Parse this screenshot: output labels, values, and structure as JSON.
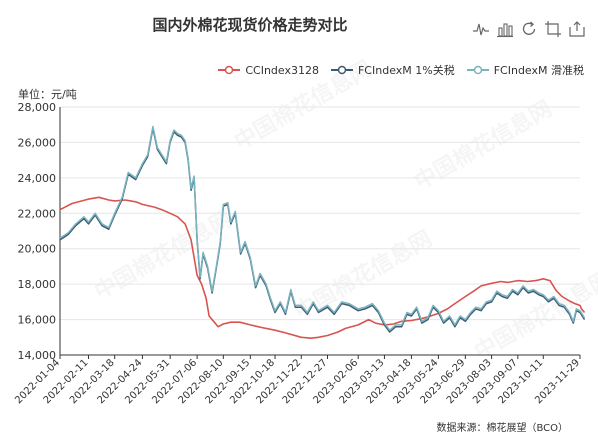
{
  "title": "国内外棉花现货价格走势对比",
  "unit_label": "单位：元/吨",
  "source": "数据来源：棉花展望（BCO）",
  "toolbox": [
    {
      "name": "line-chart-icon"
    },
    {
      "name": "bar-chart-icon"
    },
    {
      "name": "restore-icon"
    },
    {
      "name": "data-zoom-icon"
    },
    {
      "name": "save-image-icon"
    }
  ],
  "chart_data": {
    "type": "line",
    "title": "国内外棉花现货价格走势对比",
    "ylabel": "单位：元/吨",
    "ylim": [
      14000,
      28000
    ],
    "y_ticks": [
      "14,000",
      "16,000",
      "18,000",
      "20,000",
      "22,000",
      "24,000",
      "26,000",
      "28,000"
    ],
    "x_ticks": [
      "2022-01-04",
      "2022-02-11",
      "2022-03-18",
      "2022-04-24",
      "2022-05-31",
      "2022-07-06",
      "2022-08-10",
      "2022-09-15",
      "2022-10-18",
      "2022-11-22",
      "2022-12-27",
      "2023-02-06",
      "2023-03-13",
      "2023-04-18",
      "2023-05-24",
      "2023-06-29",
      "2023-08-03",
      "2023-09-07",
      "2023-10-11",
      "2023-11-29"
    ],
    "grid": true,
    "legend_position": "top-right",
    "colors": {
      "cc": "#d9534f",
      "fc1": "#3d5a73",
      "fc2": "#79b4bf"
    },
    "series": [
      {
        "name": "CCIndex3128",
        "color": "#d9534f",
        "points": [
          [
            "2022-01-04",
            22200
          ],
          [
            "2022-01-20",
            22550
          ],
          [
            "2022-02-11",
            22800
          ],
          [
            "2022-02-25",
            22900
          ],
          [
            "2022-03-10",
            22750
          ],
          [
            "2022-03-18",
            22700
          ],
          [
            "2022-04-01",
            22750
          ],
          [
            "2022-04-15",
            22650
          ],
          [
            "2022-04-24",
            22500
          ],
          [
            "2022-05-10",
            22350
          ],
          [
            "2022-05-20",
            22200
          ],
          [
            "2022-05-31",
            22000
          ],
          [
            "2022-06-10",
            21800
          ],
          [
            "2022-06-20",
            21400
          ],
          [
            "2022-06-28",
            20500
          ],
          [
            "2022-07-02",
            19500
          ],
          [
            "2022-07-06",
            18500
          ],
          [
            "2022-07-12",
            18000
          ],
          [
            "2022-07-18",
            17200
          ],
          [
            "2022-07-22",
            16200
          ],
          [
            "2022-07-28",
            15900
          ],
          [
            "2022-08-03",
            15600
          ],
          [
            "2022-08-10",
            15750
          ],
          [
            "2022-08-20",
            15850
          ],
          [
            "2022-09-01",
            15850
          ],
          [
            "2022-09-15",
            15700
          ],
          [
            "2022-09-30",
            15550
          ],
          [
            "2022-10-18",
            15400
          ],
          [
            "2022-11-01",
            15250
          ],
          [
            "2022-11-22",
            15000
          ],
          [
            "2022-12-05",
            14950
          ],
          [
            "2022-12-15",
            15000
          ],
          [
            "2022-12-27",
            15100
          ],
          [
            "2023-01-10",
            15300
          ],
          [
            "2023-01-20",
            15500
          ],
          [
            "2023-02-06",
            15700
          ],
          [
            "2023-02-20",
            16000
          ],
          [
            "2023-03-01",
            15800
          ],
          [
            "2023-03-13",
            15700
          ],
          [
            "2023-03-25",
            15750
          ],
          [
            "2023-04-05",
            15900
          ],
          [
            "2023-04-18",
            15950
          ],
          [
            "2023-05-01",
            16050
          ],
          [
            "2023-05-10",
            16150
          ],
          [
            "2023-05-24",
            16350
          ],
          [
            "2023-06-05",
            16600
          ],
          [
            "2023-06-15",
            16900
          ],
          [
            "2023-06-29",
            17300
          ],
          [
            "2023-07-10",
            17600
          ],
          [
            "2023-07-20",
            17900
          ],
          [
            "2023-08-03",
            18050
          ],
          [
            "2023-08-15",
            18150
          ],
          [
            "2023-08-25",
            18100
          ],
          [
            "2023-09-07",
            18200
          ],
          [
            "2023-09-20",
            18150
          ],
          [
            "2023-10-01",
            18200
          ],
          [
            "2023-10-11",
            18300
          ],
          [
            "2023-10-20",
            18200
          ],
          [
            "2023-10-28",
            17650
          ],
          [
            "2023-11-05",
            17300
          ],
          [
            "2023-11-15",
            17050
          ],
          [
            "2023-11-22",
            16900
          ],
          [
            "2023-11-29",
            16800
          ],
          [
            "2023-12-01",
            16600
          ],
          [
            "2023-12-05",
            16400
          ]
        ]
      },
      {
        "name": "FCIndexM 1%关税",
        "color": "#3d5a73",
        "points": [
          [
            "2022-01-04",
            20500
          ],
          [
            "2022-01-15",
            20800
          ],
          [
            "2022-01-25",
            21300
          ],
          [
            "2022-02-05",
            21700
          ],
          [
            "2022-02-11",
            21400
          ],
          [
            "2022-02-20",
            21900
          ],
          [
            "2022-03-01",
            21300
          ],
          [
            "2022-03-10",
            21100
          ],
          [
            "2022-03-18",
            21900
          ],
          [
            "2022-03-28",
            22800
          ],
          [
            "2022-04-05",
            24200
          ],
          [
            "2022-04-15",
            23900
          ],
          [
            "2022-04-24",
            24700
          ],
          [
            "2022-05-01",
            25200
          ],
          [
            "2022-05-08",
            26800
          ],
          [
            "2022-05-14",
            25600
          ],
          [
            "2022-05-20",
            25200
          ],
          [
            "2022-05-26",
            24800
          ],
          [
            "2022-05-31",
            26000
          ],
          [
            "2022-06-05",
            26600
          ],
          [
            "2022-06-10",
            26400
          ],
          [
            "2022-06-15",
            26300
          ],
          [
            "2022-06-20",
            26000
          ],
          [
            "2022-06-24",
            25000
          ],
          [
            "2022-06-28",
            23300
          ],
          [
            "2022-07-02",
            24000
          ],
          [
            "2022-07-06",
            20500
          ],
          [
            "2022-07-10",
            18300
          ],
          [
            "2022-07-14",
            19700
          ],
          [
            "2022-07-20",
            18900
          ],
          [
            "2022-07-26",
            17500
          ],
          [
            "2022-08-01",
            19000
          ],
          [
            "2022-08-06",
            20300
          ],
          [
            "2022-08-10",
            22400
          ],
          [
            "2022-08-16",
            22500
          ],
          [
            "2022-08-20",
            21400
          ],
          [
            "2022-08-26",
            22000
          ],
          [
            "2022-09-02",
            19700
          ],
          [
            "2022-09-08",
            20300
          ],
          [
            "2022-09-15",
            19400
          ],
          [
            "2022-09-22",
            17800
          ],
          [
            "2022-09-28",
            18500
          ],
          [
            "2022-10-06",
            17900
          ],
          [
            "2022-10-12",
            17100
          ],
          [
            "2022-10-18",
            16400
          ],
          [
            "2022-10-25",
            16900
          ],
          [
            "2022-11-01",
            16300
          ],
          [
            "2022-11-08",
            17600
          ],
          [
            "2022-11-14",
            16700
          ],
          [
            "2022-11-22",
            16700
          ],
          [
            "2022-11-30",
            16300
          ],
          [
            "2022-12-08",
            16900
          ],
          [
            "2022-12-15",
            16400
          ],
          [
            "2022-12-27",
            16700
          ],
          [
            "2023-01-05",
            16300
          ],
          [
            "2023-01-15",
            16900
          ],
          [
            "2023-01-25",
            16800
          ],
          [
            "2023-02-06",
            16500
          ],
          [
            "2023-02-15",
            16600
          ],
          [
            "2023-02-25",
            16800
          ],
          [
            "2023-03-05",
            16400
          ],
          [
            "2023-03-13",
            15700
          ],
          [
            "2023-03-20",
            15300
          ],
          [
            "2023-03-28",
            15600
          ],
          [
            "2023-04-05",
            15600
          ],
          [
            "2023-04-12",
            16300
          ],
          [
            "2023-04-18",
            16200
          ],
          [
            "2023-04-25",
            16600
          ],
          [
            "2023-05-02",
            15800
          ],
          [
            "2023-05-10",
            16000
          ],
          [
            "2023-05-17",
            16700
          ],
          [
            "2023-05-24",
            16400
          ],
          [
            "2023-05-31",
            15800
          ],
          [
            "2023-06-08",
            16100
          ],
          [
            "2023-06-15",
            15600
          ],
          [
            "2023-06-22",
            16100
          ],
          [
            "2023-06-29",
            15900
          ],
          [
            "2023-07-06",
            16300
          ],
          [
            "2023-07-13",
            16600
          ],
          [
            "2023-07-20",
            16500
          ],
          [
            "2023-07-27",
            16900
          ],
          [
            "2023-08-03",
            17000
          ],
          [
            "2023-08-10",
            17500
          ],
          [
            "2023-08-17",
            17300
          ],
          [
            "2023-08-24",
            17200
          ],
          [
            "2023-08-31",
            17600
          ],
          [
            "2023-09-07",
            17400
          ],
          [
            "2023-09-14",
            17800
          ],
          [
            "2023-09-21",
            17500
          ],
          [
            "2023-09-28",
            17600
          ],
          [
            "2023-10-05",
            17400
          ],
          [
            "2023-10-11",
            17300
          ],
          [
            "2023-10-18",
            17000
          ],
          [
            "2023-10-25",
            17200
          ],
          [
            "2023-11-01",
            16800
          ],
          [
            "2023-11-08",
            16700
          ],
          [
            "2023-11-15",
            16300
          ],
          [
            "2023-11-20",
            15800
          ],
          [
            "2023-11-24",
            16500
          ],
          [
            "2023-11-29",
            16400
          ],
          [
            "2023-12-05",
            16000
          ]
        ]
      },
      {
        "name": "FCIndexM 滑准税",
        "color": "#79b4bf",
        "points": [
          [
            "2022-01-04",
            20600
          ],
          [
            "2022-01-15",
            20900
          ],
          [
            "2022-01-25",
            21400
          ],
          [
            "2022-02-05",
            21800
          ],
          [
            "2022-02-11",
            21500
          ],
          [
            "2022-02-20",
            22000
          ],
          [
            "2022-03-01",
            21400
          ],
          [
            "2022-03-10",
            21200
          ],
          [
            "2022-03-18",
            22000
          ],
          [
            "2022-03-28",
            22900
          ],
          [
            "2022-04-05",
            24300
          ],
          [
            "2022-04-15",
            24000
          ],
          [
            "2022-04-24",
            24800
          ],
          [
            "2022-05-01",
            25300
          ],
          [
            "2022-05-08",
            26900
          ],
          [
            "2022-05-14",
            25700
          ],
          [
            "2022-05-20",
            25300
          ],
          [
            "2022-05-26",
            24900
          ],
          [
            "2022-05-31",
            26100
          ],
          [
            "2022-06-05",
            26700
          ],
          [
            "2022-06-10",
            26500
          ],
          [
            "2022-06-15",
            26400
          ],
          [
            "2022-06-20",
            26100
          ],
          [
            "2022-06-24",
            25100
          ],
          [
            "2022-06-28",
            23400
          ],
          [
            "2022-07-02",
            24100
          ],
          [
            "2022-07-06",
            20600
          ],
          [
            "2022-07-10",
            18400
          ],
          [
            "2022-07-14",
            19800
          ],
          [
            "2022-07-20",
            19000
          ],
          [
            "2022-07-26",
            17600
          ],
          [
            "2022-08-01",
            19100
          ],
          [
            "2022-08-06",
            20400
          ],
          [
            "2022-08-10",
            22500
          ],
          [
            "2022-08-16",
            22600
          ],
          [
            "2022-08-20",
            21500
          ],
          [
            "2022-08-26",
            22100
          ],
          [
            "2022-09-02",
            19800
          ],
          [
            "2022-09-08",
            20400
          ],
          [
            "2022-09-15",
            19500
          ],
          [
            "2022-09-22",
            17900
          ],
          [
            "2022-09-28",
            18600
          ],
          [
            "2022-10-06",
            18000
          ],
          [
            "2022-10-12",
            17200
          ],
          [
            "2022-10-18",
            16500
          ],
          [
            "2022-10-25",
            17000
          ],
          [
            "2022-11-01",
            16400
          ],
          [
            "2022-11-08",
            17700
          ],
          [
            "2022-11-14",
            16800
          ],
          [
            "2022-11-22",
            16800
          ],
          [
            "2022-11-30",
            16400
          ],
          [
            "2022-12-08",
            17000
          ],
          [
            "2022-12-15",
            16500
          ],
          [
            "2022-12-27",
            16800
          ],
          [
            "2023-01-05",
            16400
          ],
          [
            "2023-01-15",
            17000
          ],
          [
            "2023-01-25",
            16900
          ],
          [
            "2023-02-06",
            16600
          ],
          [
            "2023-02-15",
            16700
          ],
          [
            "2023-02-25",
            16900
          ],
          [
            "2023-03-05",
            16500
          ],
          [
            "2023-03-13",
            15800
          ],
          [
            "2023-03-20",
            15400
          ],
          [
            "2023-03-28",
            15700
          ],
          [
            "2023-04-05",
            15700
          ],
          [
            "2023-04-12",
            16400
          ],
          [
            "2023-04-18",
            16300
          ],
          [
            "2023-04-25",
            16700
          ],
          [
            "2023-05-02",
            15900
          ],
          [
            "2023-05-10",
            16100
          ],
          [
            "2023-05-17",
            16800
          ],
          [
            "2023-05-24",
            16500
          ],
          [
            "2023-05-31",
            15900
          ],
          [
            "2023-06-08",
            16200
          ],
          [
            "2023-06-15",
            15700
          ],
          [
            "2023-06-22",
            16200
          ],
          [
            "2023-06-29",
            16000
          ],
          [
            "2023-07-06",
            16400
          ],
          [
            "2023-07-13",
            16700
          ],
          [
            "2023-07-20",
            16600
          ],
          [
            "2023-07-27",
            17000
          ],
          [
            "2023-08-03",
            17100
          ],
          [
            "2023-08-10",
            17600
          ],
          [
            "2023-08-17",
            17400
          ],
          [
            "2023-08-24",
            17300
          ],
          [
            "2023-08-31",
            17700
          ],
          [
            "2023-09-07",
            17500
          ],
          [
            "2023-09-14",
            17900
          ],
          [
            "2023-09-21",
            17600
          ],
          [
            "2023-09-28",
            17700
          ],
          [
            "2023-10-05",
            17500
          ],
          [
            "2023-10-11",
            17400
          ],
          [
            "2023-10-18",
            17100
          ],
          [
            "2023-10-25",
            17300
          ],
          [
            "2023-11-01",
            16900
          ],
          [
            "2023-11-08",
            16800
          ],
          [
            "2023-11-15",
            16400
          ],
          [
            "2023-11-20",
            15900
          ],
          [
            "2023-11-24",
            16600
          ],
          [
            "2023-11-29",
            16500
          ],
          [
            "2023-12-05",
            16100
          ]
        ]
      }
    ]
  }
}
